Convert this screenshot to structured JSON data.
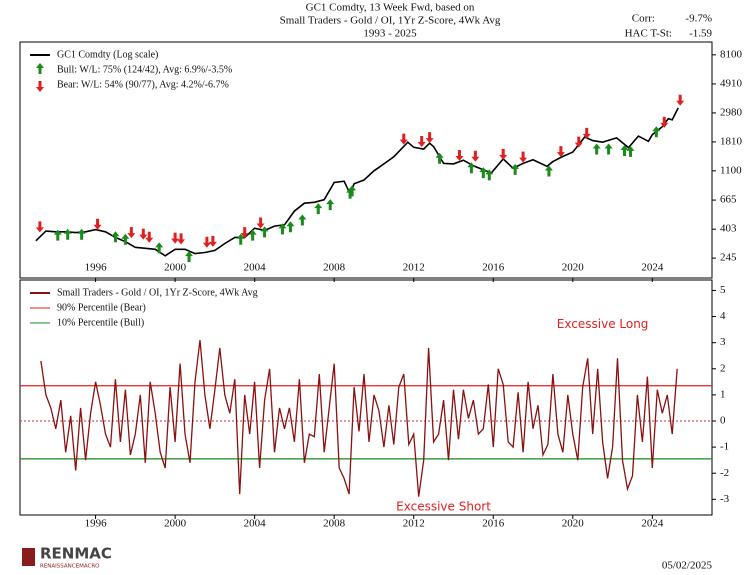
{
  "header": {
    "title_lines": [
      "GC1 Comdty, 13 Week Fwd, based on",
      "Small Traders - Gold / OI, 1Yr Z-Score, 4Wk Avg",
      "1993 - 2025"
    ],
    "stats": [
      {
        "label": "Corr:",
        "value": "-9.7%"
      },
      {
        "label": "HAC T-St:",
        "value": "-1.59"
      }
    ]
  },
  "chart_data": [
    {
      "type": "line",
      "log_scale": true,
      "xlim": [
        1992.2,
        2027
      ],
      "ylim": [
        174,
        10100
      ],
      "xticks": [
        1996,
        2000,
        2004,
        2008,
        2012,
        2016,
        2020,
        2024
      ],
      "yticks": [
        245,
        403,
        665,
        1100,
        1810,
        2980,
        4910,
        8100
      ],
      "series": [
        {
          "name": "GC1 Comdty (Log scale)",
          "color": "#000000",
          "marker": "line",
          "x": [
            1993.0,
            1993.5,
            1994.0,
            1994.5,
            1995.0,
            1995.5,
            1996.0,
            1996.5,
            1997.0,
            1997.5,
            1998.0,
            1998.5,
            1999.0,
            1999.5,
            2000.0,
            2000.5,
            2001.0,
            2001.5,
            2002.0,
            2002.5,
            2003.0,
            2003.5,
            2004.0,
            2004.5,
            2005.0,
            2005.5,
            2006.0,
            2006.5,
            2007.0,
            2007.5,
            2008.0,
            2008.5,
            2008.8,
            2009.0,
            2009.5,
            2010.0,
            2010.5,
            2011.0,
            2011.7,
            2012.0,
            2012.5,
            2012.8,
            2013.0,
            2013.5,
            2014.0,
            2014.5,
            2015.0,
            2015.9,
            2016.5,
            2017.0,
            2017.5,
            2018.0,
            2018.7,
            2019.0,
            2019.5,
            2020.0,
            2020.6,
            2021.0,
            2021.5,
            2022.2,
            2022.8,
            2023.3,
            2023.8,
            2024.0,
            2024.5,
            2024.8,
            2025.0,
            2025.3
          ],
          "values": [
            330,
            390,
            385,
            385,
            380,
            385,
            400,
            385,
            350,
            325,
            295,
            290,
            285,
            255,
            285,
            285,
            265,
            270,
            280,
            315,
            350,
            350,
            410,
            395,
            425,
            435,
            550,
            630,
            640,
            670,
            900,
            920,
            740,
            880,
            940,
            1100,
            1240,
            1400,
            1800,
            1650,
            1600,
            1770,
            1670,
            1250,
            1240,
            1320,
            1200,
            1060,
            1350,
            1150,
            1250,
            1330,
            1190,
            1290,
            1410,
            1520,
            1970,
            1850,
            1800,
            1940,
            1640,
            2000,
            1830,
            2050,
            2350,
            2700,
            2650,
            3250
          ]
        },
        {
          "name": "Bull:  W/L: 75% (124/42), Avg: 6.9%/-3.5%",
          "color": "#1a8a1a",
          "marker": "arrow-up",
          "x": [
            1994.1,
            1994.6,
            1995.3,
            1997.0,
            1997.5,
            1999.2,
            2000.7,
            2003.3,
            2003.9,
            2004.5,
            2005.4,
            2005.8,
            2006.4,
            2007.2,
            2007.8,
            2008.8,
            2008.9,
            2013.3,
            2014.9,
            2015.5,
            2015.8,
            2017.1,
            2018.8,
            2021.2,
            2021.8,
            2022.6,
            2022.9,
            2024.2
          ],
          "values": [
            355,
            360,
            360,
            345,
            330,
            285,
            245,
            330,
            355,
            375,
            395,
            410,
            460,
            560,
            600,
            730,
            760,
            1330,
            1130,
            1040,
            1000,
            1100,
            1070,
            1560,
            1560,
            1520,
            1500,
            2100
          ]
        },
        {
          "name": "Bear:  W/L: 54% (90/77), Avg: 4.2%/-6.7%",
          "color": "#e02020",
          "marker": "arrow-down",
          "x": [
            1993.2,
            1996.1,
            1997.8,
            1998.4,
            1998.7,
            2000.0,
            2000.3,
            2001.6,
            2001.9,
            2003.5,
            2004.3,
            2011.5,
            2012.4,
            2012.8,
            2014.3,
            2015.1,
            2016.5,
            2017.5,
            2019.4,
            2020.3,
            2020.7,
            2024.6,
            2025.4
          ],
          "values": [
            430,
            450,
            390,
            380,
            360,
            355,
            350,
            330,
            335,
            390,
            460,
            1950,
            1870,
            2000,
            1470,
            1450,
            1500,
            1430,
            1570,
            1850,
            2150,
            2600,
            3800
          ]
        }
      ]
    },
    {
      "type": "line",
      "xlim": [
        1992.2,
        2027
      ],
      "ylim": [
        -3.6,
        5.4
      ],
      "xticks": [
        1996,
        2000,
        2004,
        2008,
        2012,
        2016,
        2020,
        2024
      ],
      "yticks": [
        -3,
        -2,
        -1,
        0,
        1,
        2,
        3,
        4,
        5
      ],
      "series": [
        {
          "name": "Small Traders - Gold / OI, 1Yr Z-Score, 4Wk Avg",
          "color": "#8b1010",
          "marker": "line",
          "x": [
            1993.25,
            1993.5,
            1993.75,
            1994.0,
            1994.25,
            1994.5,
            1994.75,
            1995.0,
            1995.25,
            1995.5,
            1995.75,
            1996.0,
            1996.25,
            1996.5,
            1996.75,
            1997.0,
            1997.25,
            1997.5,
            1997.75,
            1998.0,
            1998.25,
            1998.5,
            1998.75,
            1999.0,
            1999.25,
            1999.5,
            1999.75,
            2000.0,
            2000.25,
            2000.5,
            2000.75,
            2001.0,
            2001.25,
            2001.5,
            2001.75,
            2002.0,
            2002.25,
            2002.5,
            2002.75,
            2003.0,
            2003.25,
            2003.5,
            2003.75,
            2004.0,
            2004.25,
            2004.5,
            2004.75,
            2005.0,
            2005.25,
            2005.5,
            2005.75,
            2006.0,
            2006.25,
            2006.5,
            2006.75,
            2007.0,
            2007.25,
            2007.5,
            2007.75,
            2008.0,
            2008.25,
            2008.5,
            2008.75,
            2009.0,
            2009.25,
            2009.5,
            2009.75,
            2010.0,
            2010.25,
            2010.5,
            2010.75,
            2011.0,
            2011.25,
            2011.5,
            2011.75,
            2012.0,
            2012.25,
            2012.5,
            2012.75,
            2013.0,
            2013.25,
            2013.5,
            2013.75,
            2014.0,
            2014.25,
            2014.5,
            2014.75,
            2015.0,
            2015.25,
            2015.5,
            2015.75,
            2016.0,
            2016.25,
            2016.5,
            2016.75,
            2017.0,
            2017.25,
            2017.5,
            2017.75,
            2018.0,
            2018.25,
            2018.5,
            2018.75,
            2019.0,
            2019.25,
            2019.5,
            2019.75,
            2020.0,
            2020.25,
            2020.5,
            2020.75,
            2021.0,
            2021.25,
            2021.5,
            2021.75,
            2022.0,
            2022.25,
            2022.5,
            2022.75,
            2023.0,
            2023.25,
            2023.5,
            2023.75,
            2024.0,
            2024.25,
            2024.5,
            2024.75,
            2025.0,
            2025.25
          ],
          "values": [
            2.3,
            1.0,
            0.5,
            -0.3,
            0.8,
            -1.2,
            0.2,
            -1.9,
            0.5,
            -1.5,
            0.3,
            1.5,
            0.6,
            -0.5,
            -1.0,
            1.6,
            -0.8,
            1.2,
            -1.3,
            -0.5,
            1.0,
            -1.6,
            1.5,
            0.3,
            -1.2,
            -1.8,
            1.3,
            -0.8,
            2.2,
            -0.5,
            -1.6,
            1.5,
            3.1,
            1.0,
            -0.3,
            1.2,
            2.8,
            1.0,
            0.3,
            1.6,
            -2.8,
            1.0,
            -0.5,
            1.5,
            -1.8,
            0.8,
            2.0,
            -1.2,
            0.5,
            -0.3,
            0.5,
            -0.8,
            1.6,
            -1.6,
            -0.5,
            -0.6,
            1.8,
            -1.2,
            0.5,
            2.2,
            -1.8,
            -2.2,
            -2.8,
            1.3,
            -0.4,
            1.8,
            -0.8,
            1.0,
            0.4,
            -1.0,
            0.6,
            -0.9,
            1.3,
            1.8,
            -0.9,
            -0.5,
            -2.9,
            -1.5,
            2.8,
            -0.8,
            -0.5,
            0.8,
            -1.5,
            1.2,
            -0.7,
            1.2,
            0.1,
            0.8,
            -0.5,
            -0.3,
            1.4,
            -1.0,
            2.0,
            1.4,
            -0.8,
            -1.0,
            1.1,
            -1.2,
            1.5,
            -0.3,
            0.6,
            -1.3,
            -0.9,
            1.8,
            -0.5,
            -1.2,
            1.0,
            -0.5,
            -1.5,
            1.3,
            2.4,
            -0.5,
            2.0,
            -0.8,
            -2.2,
            -1.0,
            2.4,
            -1.5,
            -2.6,
            -2.1,
            1.0,
            -0.8,
            1.7,
            -1.8,
            1.2,
            0.3,
            1.0,
            -0.5,
            2.0
          ]
        }
      ],
      "hlines": [
        {
          "name": "90% Percentile (Bear)",
          "value": 1.35,
          "color": "#e02020"
        },
        {
          "name": "10% Percentile (Bull)",
          "value": -1.45,
          "color": "#1a8a1a"
        }
      ],
      "annotations": [
        {
          "text": "Excessive Long",
          "x": 2021.5,
          "y": 3.7,
          "color": "#e02020"
        },
        {
          "text": "Excessive Short",
          "x": 2013.5,
          "y": -3.3,
          "color": "#e02020"
        }
      ]
    }
  ],
  "footer": {
    "logo": "RENMAC",
    "logo_sub": "RENAISSANCEMACRO",
    "date": "05/02/2025"
  }
}
